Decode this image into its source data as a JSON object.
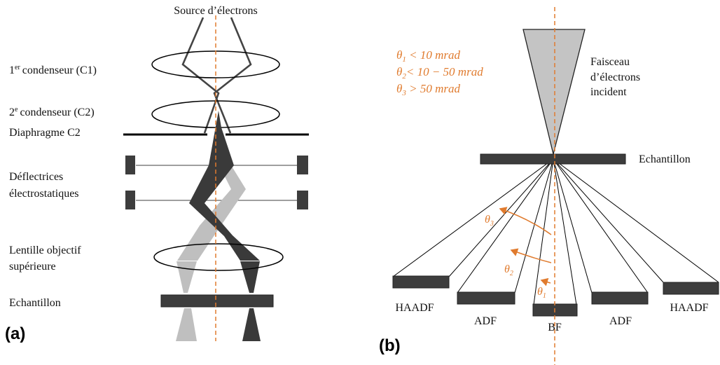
{
  "panel_a": {
    "letter": "(a)",
    "source": "Source d’électrons",
    "c1": "condenseur (C1)",
    "c1_num": "1",
    "c1_sup": "er",
    "c2": "condenseur (C2)",
    "c2_num": "2",
    "c2_sup": "e",
    "diaphragm": "Diaphragme C2",
    "deflectors_1": "Déflectrices",
    "deflectors_2": "électrostatiques",
    "objective_1": "Lentille objectif",
    "objective_2": "supérieure",
    "sample": "Echantillon"
  },
  "panel_b": {
    "letter": "(b)",
    "beam_1": "Faisceau",
    "beam_2": "d’électrons",
    "beam_3": "incident",
    "sample": "Echantillon",
    "eq1_rest": " < 10 mrad",
    "eq2_rest": "< 10 − 50 mrad",
    "eq3_rest": " > 50 mrad",
    "theta_symbol": "θ",
    "sub1": "1",
    "sub2": "2",
    "sub3": "3",
    "detectors": [
      "HAADF",
      "ADF",
      "BF",
      "ADF",
      "HAADF"
    ]
  },
  "colors": {
    "accent": "#e07b2e",
    "dark_beam": "#3a3a3a",
    "light_beam": "#bfbfbf",
    "cone": "#c4c4c4",
    "detector": "#3d3d3d"
  }
}
